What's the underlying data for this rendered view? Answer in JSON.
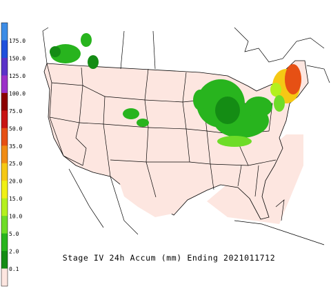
{
  "legend": {
    "items": [
      {
        "label": null,
        "color": "#3c8ce6"
      },
      {
        "label": "175.0",
        "color": "#1e50dc"
      },
      {
        "label": "150.0",
        "color": "#5a32c8"
      },
      {
        "label": "125.0",
        "color": "#9b30c8"
      },
      {
        "label": "100.0",
        "color": "#8b0000"
      },
      {
        "label": "75.0",
        "color": "#c81414"
      },
      {
        "label": "50.0",
        "color": "#e65014"
      },
      {
        "label": "35.0",
        "color": "#f08c14"
      },
      {
        "label": "25.0",
        "color": "#f5c814"
      },
      {
        "label": "20.0",
        "color": "#f0f014"
      },
      {
        "label": "15.0",
        "color": "#b4f01e"
      },
      {
        "label": "10.0",
        "color": "#6edc28"
      },
      {
        "label": "5.0",
        "color": "#28b41e"
      },
      {
        "label": "2.0",
        "color": "#148c14"
      },
      {
        "label": "0.1",
        "color": "#fde6e0"
      }
    ]
  },
  "caption": "Stage IV 24h Accum (mm) Ending 2021011712"
}
